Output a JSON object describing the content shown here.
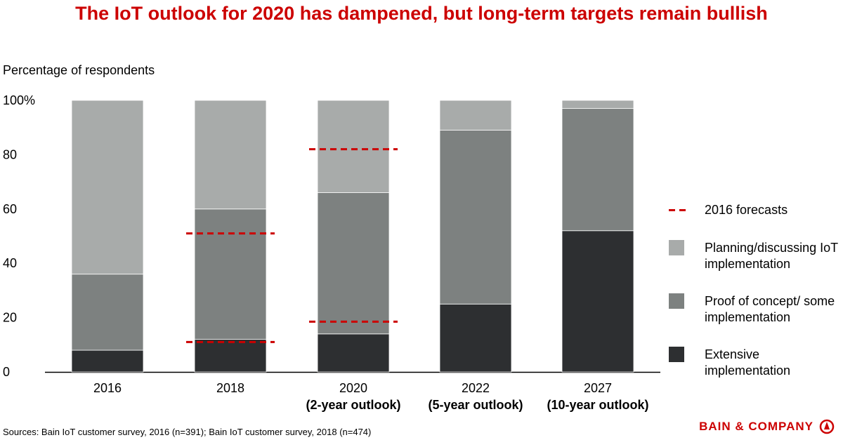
{
  "chart_data": {
    "type": "bar",
    "stacked": true,
    "title": "The IoT outlook for 2020 has dampened, but long-term targets remain bullish",
    "ylabel": "Percentage of respondents",
    "ylim": [
      0,
      100
    ],
    "yticks": [
      "0",
      "20",
      "40",
      "60",
      "80",
      "100%"
    ],
    "categories": [
      {
        "year": "2016",
        "sub": ""
      },
      {
        "year": "2018",
        "sub": ""
      },
      {
        "year": "2020",
        "sub": "(2-year outlook)"
      },
      {
        "year": "2022",
        "sub": "(5-year outlook)"
      },
      {
        "year": "2027",
        "sub": "(10-year outlook)"
      }
    ],
    "series": [
      {
        "name": "Extensive implementation",
        "color": "#2d2f31",
        "values": [
          8,
          12,
          14,
          25,
          52
        ]
      },
      {
        "name": "Proof of concept/ some implementation",
        "color": "#7d8180",
        "values": [
          28,
          48,
          52,
          64,
          45
        ]
      },
      {
        "name": "Planning/discussing IoT implementation",
        "color": "#a8abaa",
        "values": [
          64,
          40,
          34,
          11,
          3
        ]
      }
    ],
    "forecasts": {
      "name": "2016 forecasts",
      "color": "#cc0000",
      "points": [
        {
          "category_index": 1,
          "values": [
            11,
            51
          ]
        },
        {
          "category_index": 2,
          "values": [
            18.5,
            82
          ]
        }
      ]
    },
    "legend_position": "right",
    "grid": false
  },
  "legend": [
    {
      "kind": "dash",
      "label": "2016 forecasts",
      "color": "#cc0000"
    },
    {
      "kind": "swatch",
      "label": "Planning/discussing IoT implementation",
      "color": "#a8abaa"
    },
    {
      "kind": "swatch",
      "label": "Proof of concept/ some implementation",
      "color": "#7d8180"
    },
    {
      "kind": "swatch",
      "label": "Extensive implementation",
      "color": "#2d2f31"
    }
  ],
  "sources": "Sources: Bain IoT customer survey, 2016 (n=391); Bain IoT customer survey, 2018 (n=474)",
  "brand": "BAIN & COMPANY"
}
